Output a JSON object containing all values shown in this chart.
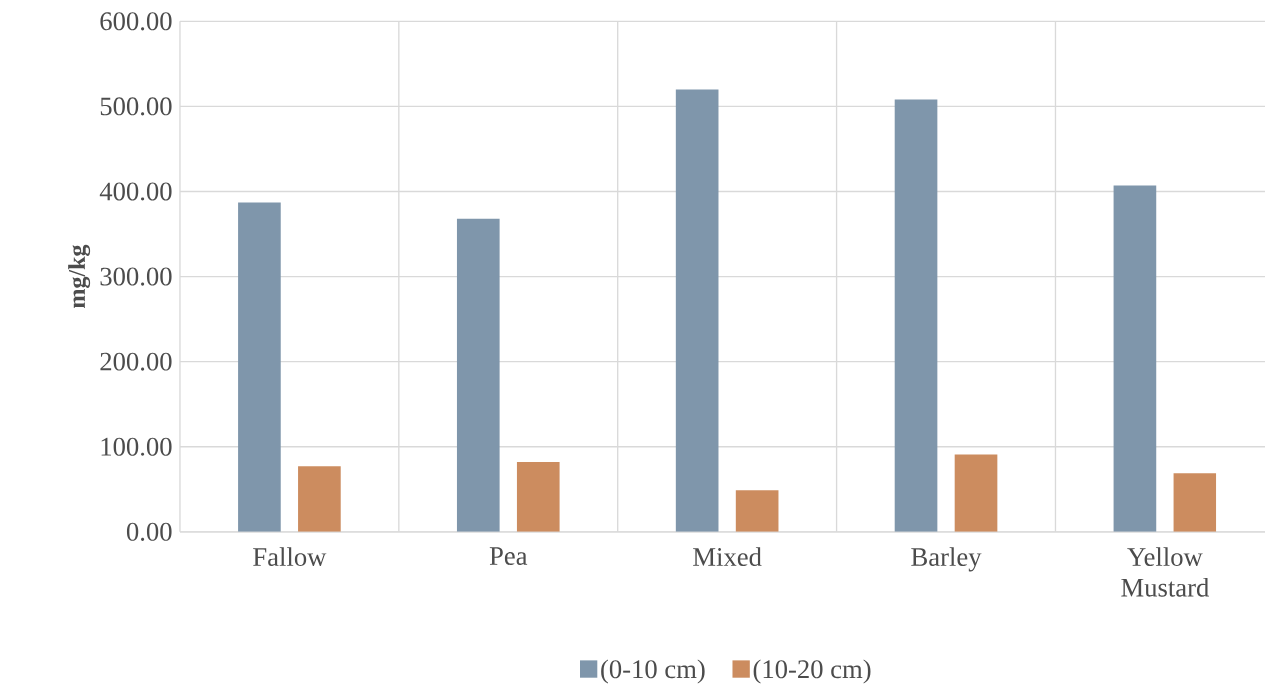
{
  "chart_data": {
    "type": "bar",
    "ylabel": "mg/kg",
    "categories": [
      "Fallow",
      "Pea",
      "Mixed",
      "Barley",
      "Yellow Mustard"
    ],
    "series": [
      {
        "name": "(0-10 cm)",
        "color": "#7f96ab",
        "values": [
          387,
          368,
          520,
          508,
          407
        ]
      },
      {
        "name": "(10-20 cm)",
        "color": "#cc8c5f",
        "values": [
          77,
          82,
          49,
          91,
          69
        ]
      }
    ],
    "ylim": [
      0,
      600
    ],
    "yticks": [
      {
        "value": 0,
        "label": "0.00"
      },
      {
        "value": 100,
        "label": "100.00"
      },
      {
        "value": 200,
        "label": "200.00"
      },
      {
        "value": 300,
        "label": "300.00"
      },
      {
        "value": 400,
        "label": "400.00"
      },
      {
        "value": 500,
        "label": "500.00"
      },
      {
        "value": 600,
        "label": "600.00"
      }
    ],
    "grid": true,
    "legend": "bottom"
  }
}
